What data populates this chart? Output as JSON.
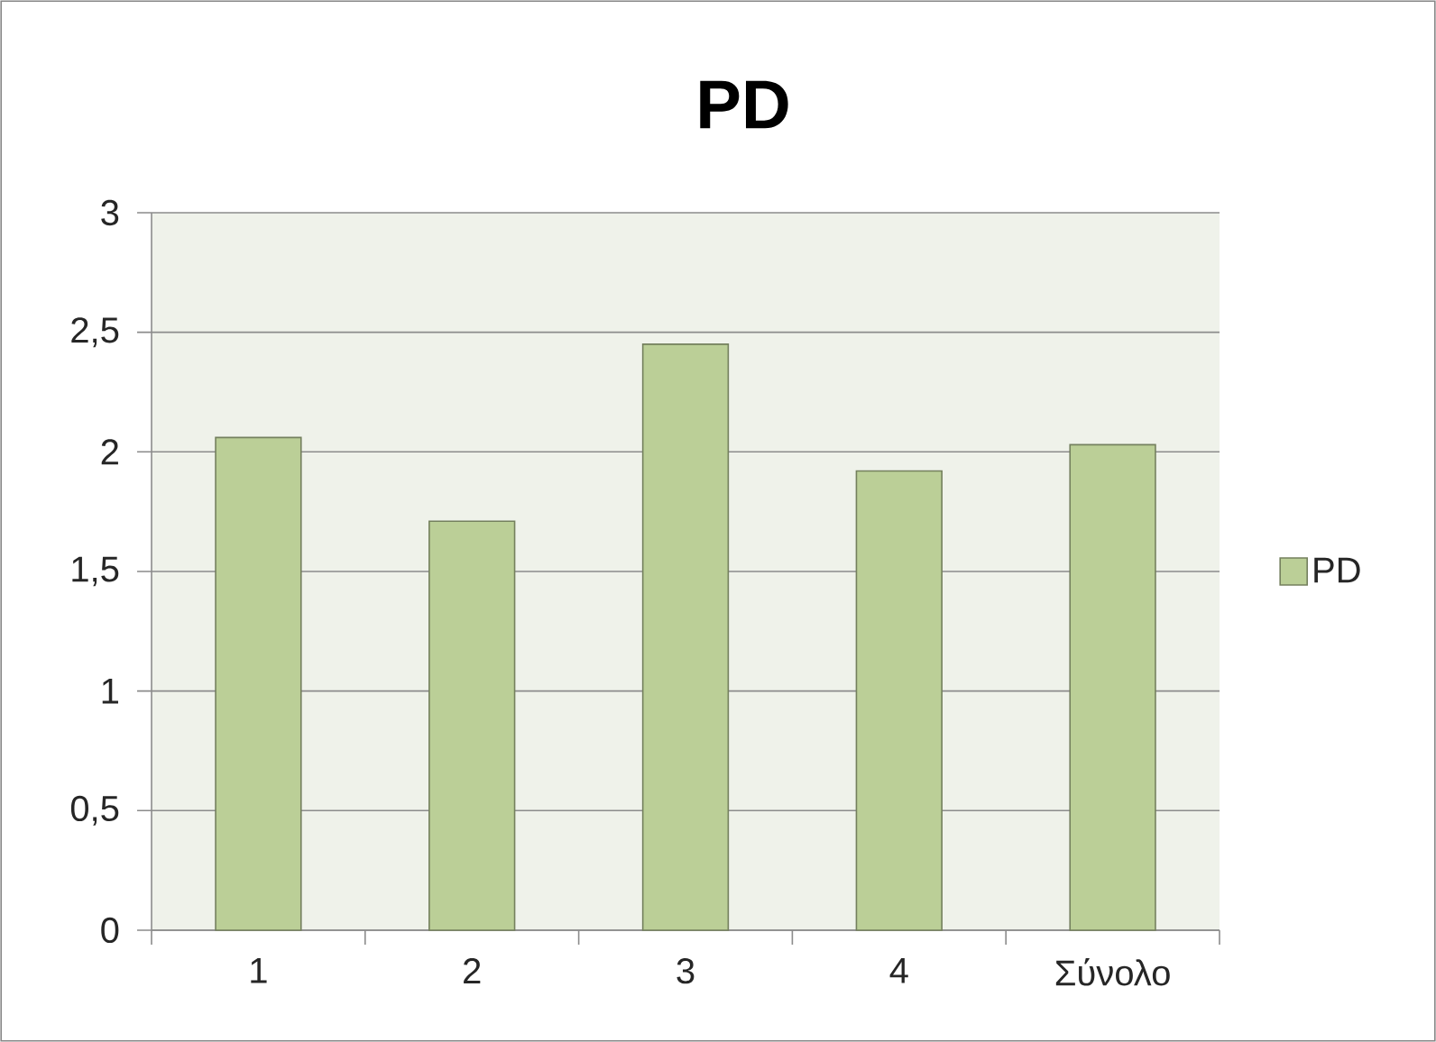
{
  "chart_data": {
    "type": "bar",
    "title": "PD",
    "categories": [
      "1",
      "2",
      "3",
      "4",
      "Σύνολο"
    ],
    "series": [
      {
        "name": "PD",
        "color": "#bbcf97",
        "values": [
          2.06,
          1.71,
          2.45,
          1.92,
          2.03
        ]
      }
    ],
    "ylim": [
      0,
      3
    ],
    "yticks": [
      0,
      {
        "value": 0.5,
        "label": "0,5"
      },
      1,
      {
        "value": 1.5,
        "label": "1,5"
      },
      2,
      {
        "value": 2.5,
        "label": "2,5"
      },
      3
    ],
    "grid": "y",
    "legend": "right"
  }
}
